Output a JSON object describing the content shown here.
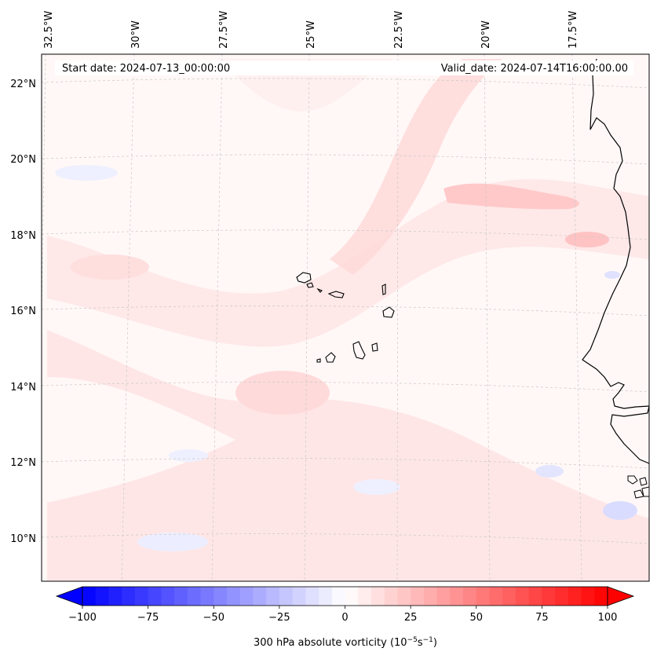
{
  "map": {
    "title_left": "Start date: 2024-07-13_00:00:00",
    "title_right": "Valid_date: 2024-07-14T16:00:00.00",
    "lon_labels": [
      "32.5°W",
      "30°W",
      "27.5°W",
      "25°W",
      "22.5°W",
      "20°W",
      "17.5°W"
    ],
    "lat_labels": [
      "22°N",
      "20°N",
      "18°N",
      "16°N",
      "14°N",
      "12°N",
      "10°N"
    ],
    "island_group": "Cape Verde",
    "coast": "West Africa (Mauritania, Senegal, Gambia, Guinea-Bissau)"
  },
  "colorbar": {
    "ticks": [
      "−100",
      "−75",
      "−50",
      "−25",
      "0",
      "25",
      "50",
      "75",
      "100"
    ],
    "min": -100,
    "max": 100,
    "step": 5,
    "label_prefix": "300 hPa absolute vorticity (10",
    "label_exp1": "−5",
    "label_mid": "s",
    "label_exp2": "−1",
    "label_suffix": ")",
    "color_low": "#0000ff",
    "color_mid": "#ffffff",
    "color_high": "#ff0000"
  }
}
